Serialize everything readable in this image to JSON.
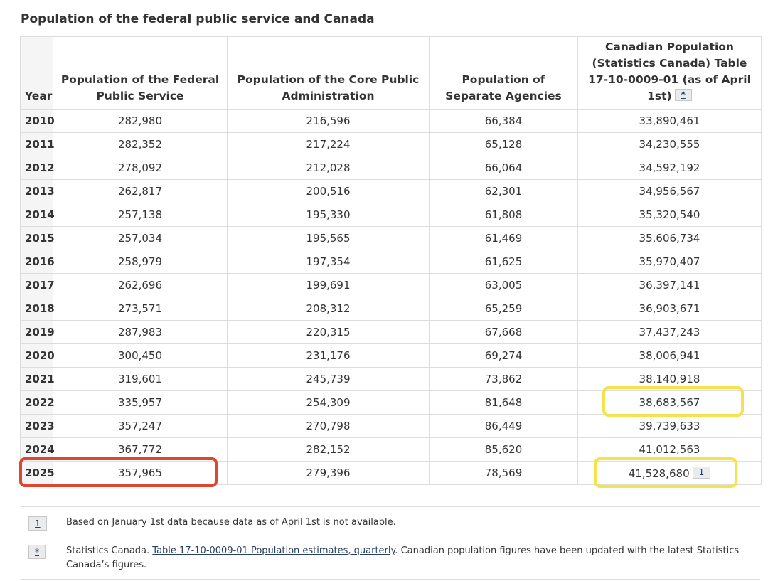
{
  "title": "Population of the federal public service and Canada",
  "table": {
    "headers": {
      "year": "Year",
      "federal": "Population of the Federal Public Service",
      "core": "Population of the Core Public Administration",
      "separate": "Population of Separate Agencies",
      "canada": "Canadian Population (Statistics Canada) Table 17-10-0009-01 (as of April 1st)",
      "canada_footnote_ref": "*"
    },
    "rows": [
      {
        "year": "2010",
        "federal": "282,980",
        "core": "216,596",
        "separate": "66,384",
        "canada": "33,890,461"
      },
      {
        "year": "2011",
        "federal": "282,352",
        "core": "217,224",
        "separate": "65,128",
        "canada": "34,230,555"
      },
      {
        "year": "2012",
        "federal": "278,092",
        "core": "212,028",
        "separate": "66,064",
        "canada": "34,592,192"
      },
      {
        "year": "2013",
        "federal": "262,817",
        "core": "200,516",
        "separate": "62,301",
        "canada": "34,956,567"
      },
      {
        "year": "2014",
        "federal": "257,138",
        "core": "195,330",
        "separate": "61,808",
        "canada": "35,320,540"
      },
      {
        "year": "2015",
        "federal": "257,034",
        "core": "195,565",
        "separate": "61,469",
        "canada": "35,606,734"
      },
      {
        "year": "2016",
        "federal": "258,979",
        "core": "197,354",
        "separate": "61,625",
        "canada": "35,970,407"
      },
      {
        "year": "2017",
        "federal": "262,696",
        "core": "199,691",
        "separate": "63,005",
        "canada": "36,397,141"
      },
      {
        "year": "2018",
        "federal": "273,571",
        "core": "208,312",
        "separate": "65,259",
        "canada": "36,903,671"
      },
      {
        "year": "2019",
        "federal": "287,983",
        "core": "220,315",
        "separate": "67,668",
        "canada": "37,437,243"
      },
      {
        "year": "2020",
        "federal": "300,450",
        "core": "231,176",
        "separate": "69,274",
        "canada": "38,006,941"
      },
      {
        "year": "2021",
        "federal": "319,601",
        "core": "245,739",
        "separate": "73,862",
        "canada": "38,140,918"
      },
      {
        "year": "2022",
        "federal": "335,957",
        "core": "254,309",
        "separate": "81,648",
        "canada": "38,683,567"
      },
      {
        "year": "2023",
        "federal": "357,247",
        "core": "270,798",
        "separate": "86,449",
        "canada": "39,739,633"
      },
      {
        "year": "2024",
        "federal": "367,772",
        "core": "282,152",
        "separate": "85,620",
        "canada": "41,012,563"
      },
      {
        "year": "2025",
        "federal": "357,965",
        "core": "279,396",
        "separate": "78,569",
        "canada": "41,528,680",
        "canada_footnote_ref": "1"
      }
    ]
  },
  "notes": [
    {
      "marker": "1",
      "text": "Based on January 1st data because data as of April 1st is not available."
    },
    {
      "marker": "*",
      "prefix": "Statistics Canada. ",
      "link": "Table 17-10-0009-01 Population estimates, quarterly",
      "suffix": ". Canadian population figures have been updated with the latest Statistics Canada’s figures."
    }
  ],
  "colors": {
    "highlight_red": "#e0452f",
    "highlight_yellow": "#f3e44d",
    "link": "#284162"
  }
}
